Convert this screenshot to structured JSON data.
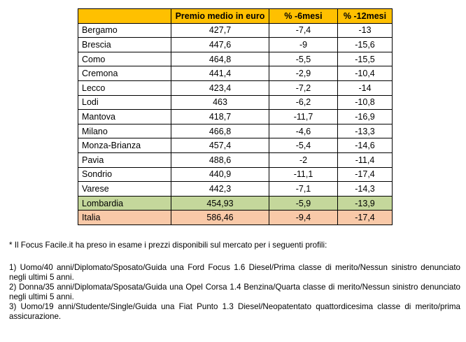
{
  "table": {
    "headers": [
      "",
      "Premio medio in euro",
      "% -6mesi",
      "% -12mesi"
    ],
    "rows": [
      {
        "name": "Bergamo",
        "premio": "427,7",
        "m6": "-7,4",
        "m12": "-13"
      },
      {
        "name": "Brescia",
        "premio": "447,6",
        "m6": "-9",
        "m12": "-15,6"
      },
      {
        "name": "Como",
        "premio": "464,8",
        "m6": "-5,5",
        "m12": "-15,5"
      },
      {
        "name": "Cremona",
        "premio": "441,4",
        "m6": "-2,9",
        "m12": "-10,4"
      },
      {
        "name": "Lecco",
        "premio": "423,4",
        "m6": "-7,2",
        "m12": "-14"
      },
      {
        "name": "Lodi",
        "premio": "463",
        "m6": "-6,2",
        "m12": "-10,8"
      },
      {
        "name": "Mantova",
        "premio": "418,7",
        "m6": "-11,7",
        "m12": "-16,9"
      },
      {
        "name": "Milano",
        "premio": "466,8",
        "m6": "-4,6",
        "m12": "-13,3"
      },
      {
        "name": "Monza-Brianza",
        "premio": "457,4",
        "m6": "-5,4",
        "m12": "-14,6"
      },
      {
        "name": "Pavia",
        "premio": "488,6",
        "m6": "-2",
        "m12": "-11,4"
      },
      {
        "name": "Sondrio",
        "premio": "440,9",
        "m6": "-11,1",
        "m12": "-17,4"
      },
      {
        "name": "Varese",
        "premio": "442,3",
        "m6": "-7,1",
        "m12": "-14,3"
      }
    ],
    "lombardia": {
      "name": "Lombardia",
      "premio": "454,93",
      "m6": "-5,9",
      "m12": "-13,9"
    },
    "italia": {
      "name": "Italia",
      "premio": "586,46",
      "m6": "-9,4",
      "m12": "-17,4"
    }
  },
  "colors": {
    "header_bg": "#ffc000",
    "lombardia_bg": "#c4d79b",
    "italia_bg": "#f9c9a8"
  },
  "notes": {
    "intro": "* Il Focus Facile.it ha preso in esame i prezzi disponibili sul mercato per i seguenti profili:",
    "profiles": [
      "1) Uomo/40 anni/Diplomato/Sposato/Guida una Ford Focus 1.6 Diesel/Prima classe di merito/Nessun sinistro denunciato negli ultimi 5 anni.",
      "2) Donna/35 anni/Diplomata/Sposata/Guida una Opel Corsa 1.4 Benzina/Quarta classe di merito/Nessun sinistro denunciato negli ultimi 5 anni.",
      "3) Uomo/19 anni/Studente/Single/Guida una Fiat Punto 1.3 Diesel/Neopatentato quattordicesima classe di merito/prima assicurazione."
    ]
  }
}
